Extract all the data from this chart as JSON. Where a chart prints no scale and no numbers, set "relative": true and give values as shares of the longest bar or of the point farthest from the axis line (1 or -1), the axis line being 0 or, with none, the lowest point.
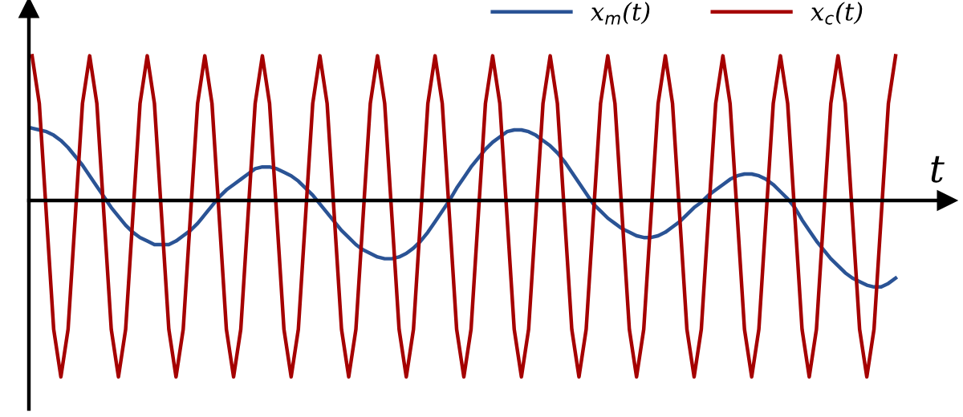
{
  "chart_data": {
    "type": "line",
    "relative": true,
    "xlabel": "t",
    "legend": "top right",
    "marker": "none",
    "line_style": "solid",
    "categories": [
      null,
      null,
      null,
      null,
      null,
      null,
      null,
      null,
      null,
      null,
      null,
      null,
      null,
      null,
      null,
      null,
      null,
      null,
      null,
      null,
      null,
      null,
      null,
      null,
      null,
      null,
      null,
      null,
      null,
      null,
      null,
      null,
      null,
      null,
      null,
      null,
      null,
      null,
      null,
      null,
      null,
      null,
      null,
      null,
      null,
      null,
      null,
      null,
      null,
      null,
      null,
      null,
      null,
      null,
      null,
      null,
      null,
      null,
      null,
      null,
      null,
      null,
      null,
      null,
      null,
      null,
      null,
      null,
      null,
      null,
      null,
      null,
      null,
      null,
      null,
      null,
      null,
      null,
      null,
      null,
      null,
      null,
      null,
      null,
      null,
      null,
      null,
      null,
      null,
      null,
      null,
      null,
      null,
      null,
      null,
      null,
      null,
      null,
      null,
      null,
      null,
      null,
      null,
      null,
      null,
      null,
      null,
      null,
      null,
      null,
      null,
      null,
      null,
      null,
      null,
      null,
      null,
      null,
      null,
      null,
      null
    ],
    "series": [
      {
        "name": "x$_{m}$(t)",
        "color": "#2a5395",
        "values": [
          0.41,
          0.4,
          0.39,
          0.37,
          0.34,
          0.3,
          0.25,
          0.2,
          0.14,
          0.08,
          0.02,
          -0.04,
          -0.09,
          -0.14,
          -0.18,
          -0.21,
          -0.23,
          -0.25,
          -0.25,
          -0.25,
          -0.23,
          -0.2,
          -0.17,
          -0.13,
          -0.08,
          -0.03,
          0.02,
          0.06,
          0.09,
          0.12,
          0.15,
          0.18,
          0.19,
          0.19,
          0.18,
          0.16,
          0.14,
          0.11,
          0.07,
          0.03,
          -0.02,
          -0.07,
          -0.12,
          -0.17,
          -0.21,
          -0.25,
          -0.28,
          -0.3,
          -0.32,
          -0.33,
          -0.33,
          -0.32,
          -0.3,
          -0.27,
          -0.23,
          -0.18,
          -0.12,
          -0.06,
          0.0,
          0.07,
          0.13,
          0.19,
          0.24,
          0.29,
          0.33,
          0.36,
          0.39,
          0.4,
          0.4,
          0.39,
          0.37,
          0.34,
          0.31,
          0.27,
          0.22,
          0.16,
          0.1,
          0.04,
          -0.02,
          -0.06,
          -0.1,
          -0.13,
          -0.16,
          -0.18,
          -0.2,
          -0.21,
          -0.21,
          -0.2,
          -0.18,
          -0.15,
          -0.12,
          -0.08,
          -0.04,
          -0.01,
          0.03,
          0.06,
          0.09,
          0.12,
          0.14,
          0.15,
          0.15,
          0.14,
          0.12,
          0.09,
          0.05,
          0.01,
          -0.04,
          -0.11,
          -0.17,
          -0.23,
          -0.28,
          -0.33,
          -0.37,
          -0.41,
          -0.44,
          -0.46,
          -0.48,
          -0.49,
          -0.49,
          -0.47,
          -0.44
        ]
      },
      {
        "name": "x$_{c}$(t)",
        "color": "#a50000",
        "values": [
          0.82,
          0.55,
          -0.09,
          -0.73,
          -1,
          -0.73,
          -0.09,
          0.55,
          0.82,
          0.55,
          -0.09,
          -0.73,
          -1,
          -0.73,
          -0.09,
          0.55,
          0.82,
          0.55,
          -0.09,
          -0.73,
          -1,
          -0.73,
          -0.09,
          0.55,
          0.82,
          0.55,
          -0.09,
          -0.73,
          -1,
          -0.73,
          -0.09,
          0.55,
          0.82,
          0.55,
          -0.09,
          -0.73,
          -1,
          -0.73,
          -0.09,
          0.55,
          0.82,
          0.55,
          -0.09,
          -0.73,
          -1,
          -0.73,
          -0.09,
          0.55,
          0.82,
          0.55,
          -0.09,
          -0.73,
          -1,
          -0.73,
          -0.09,
          0.55,
          0.82,
          0.55,
          -0.09,
          -0.73,
          -1,
          -0.73,
          -0.09,
          0.55,
          0.82,
          0.55,
          -0.09,
          -0.73,
          -1,
          -0.73,
          -0.09,
          0.55,
          0.82,
          0.55,
          -0.09,
          -0.73,
          -1,
          -0.73,
          -0.09,
          0.55,
          0.82,
          0.55,
          -0.09,
          -0.73,
          -1,
          -0.73,
          -0.09,
          0.55,
          0.82,
          0.55,
          -0.09,
          -0.73,
          -1,
          -0.73,
          -0.09,
          0.55,
          0.82,
          0.55,
          -0.09,
          -0.73,
          -1,
          -0.73,
          -0.09,
          0.55,
          0.82,
          0.55,
          -0.09,
          -0.73,
          -1,
          -0.73,
          -0.09,
          0.55,
          0.82,
          0.55,
          -0.09,
          -0.73,
          -1,
          -0.73,
          -0.09,
          0.55,
          0.82
        ]
      }
    ]
  }
}
